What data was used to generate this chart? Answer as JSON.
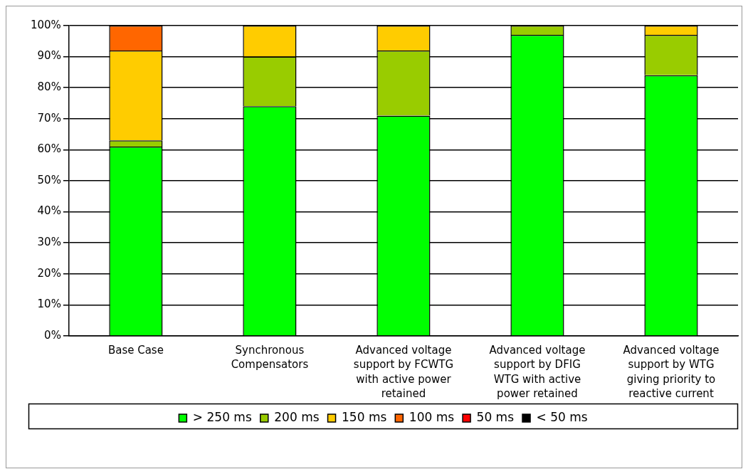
{
  "chart_data": {
    "type": "bar",
    "stacked": true,
    "categories": [
      "Base Case",
      "Synchronous Compensators",
      "Advanced voltage support by FCWTG with active power retained",
      "Advanced voltage support by DFIG WTG with active power retained",
      "Advanced voltage support by WTG giving priority to reactive current"
    ],
    "series": [
      {
        "name": "> 250 ms",
        "color": "#00ff00",
        "values": [
          61,
          74,
          71,
          97,
          84
        ]
      },
      {
        "name": "200 ms",
        "color": "#99cc00",
        "values": [
          2,
          16,
          21,
          3,
          13
        ]
      },
      {
        "name": "150 ms",
        "color": "#ffcc00",
        "values": [
          29,
          10,
          8,
          0,
          3
        ]
      },
      {
        "name": "100 ms",
        "color": "#ff6600",
        "values": [
          8,
          0,
          0,
          0,
          0
        ]
      },
      {
        "name": "50 ms",
        "color": "#ff0000",
        "values": [
          0,
          0,
          0,
          0,
          0
        ]
      },
      {
        "name": "< 50 ms",
        "color": "#000000",
        "values": [
          0,
          0,
          0,
          0,
          0
        ]
      }
    ],
    "ylim": [
      0,
      100
    ],
    "yticks": [
      {
        "value": 0,
        "label": "0%"
      },
      {
        "value": 10,
        "label": "10%"
      },
      {
        "value": 20,
        "label": "20%"
      },
      {
        "value": 30,
        "label": "30%"
      },
      {
        "value": 40,
        "label": "40%"
      },
      {
        "value": 50,
        "label": "50%"
      },
      {
        "value": 60,
        "label": "60%"
      },
      {
        "value": 70,
        "label": "70%"
      },
      {
        "value": 80,
        "label": "80%"
      },
      {
        "value": 90,
        "label": "90%"
      },
      {
        "value": 100,
        "label": "100%"
      }
    ],
    "grid": "y",
    "legend": "bottom"
  }
}
